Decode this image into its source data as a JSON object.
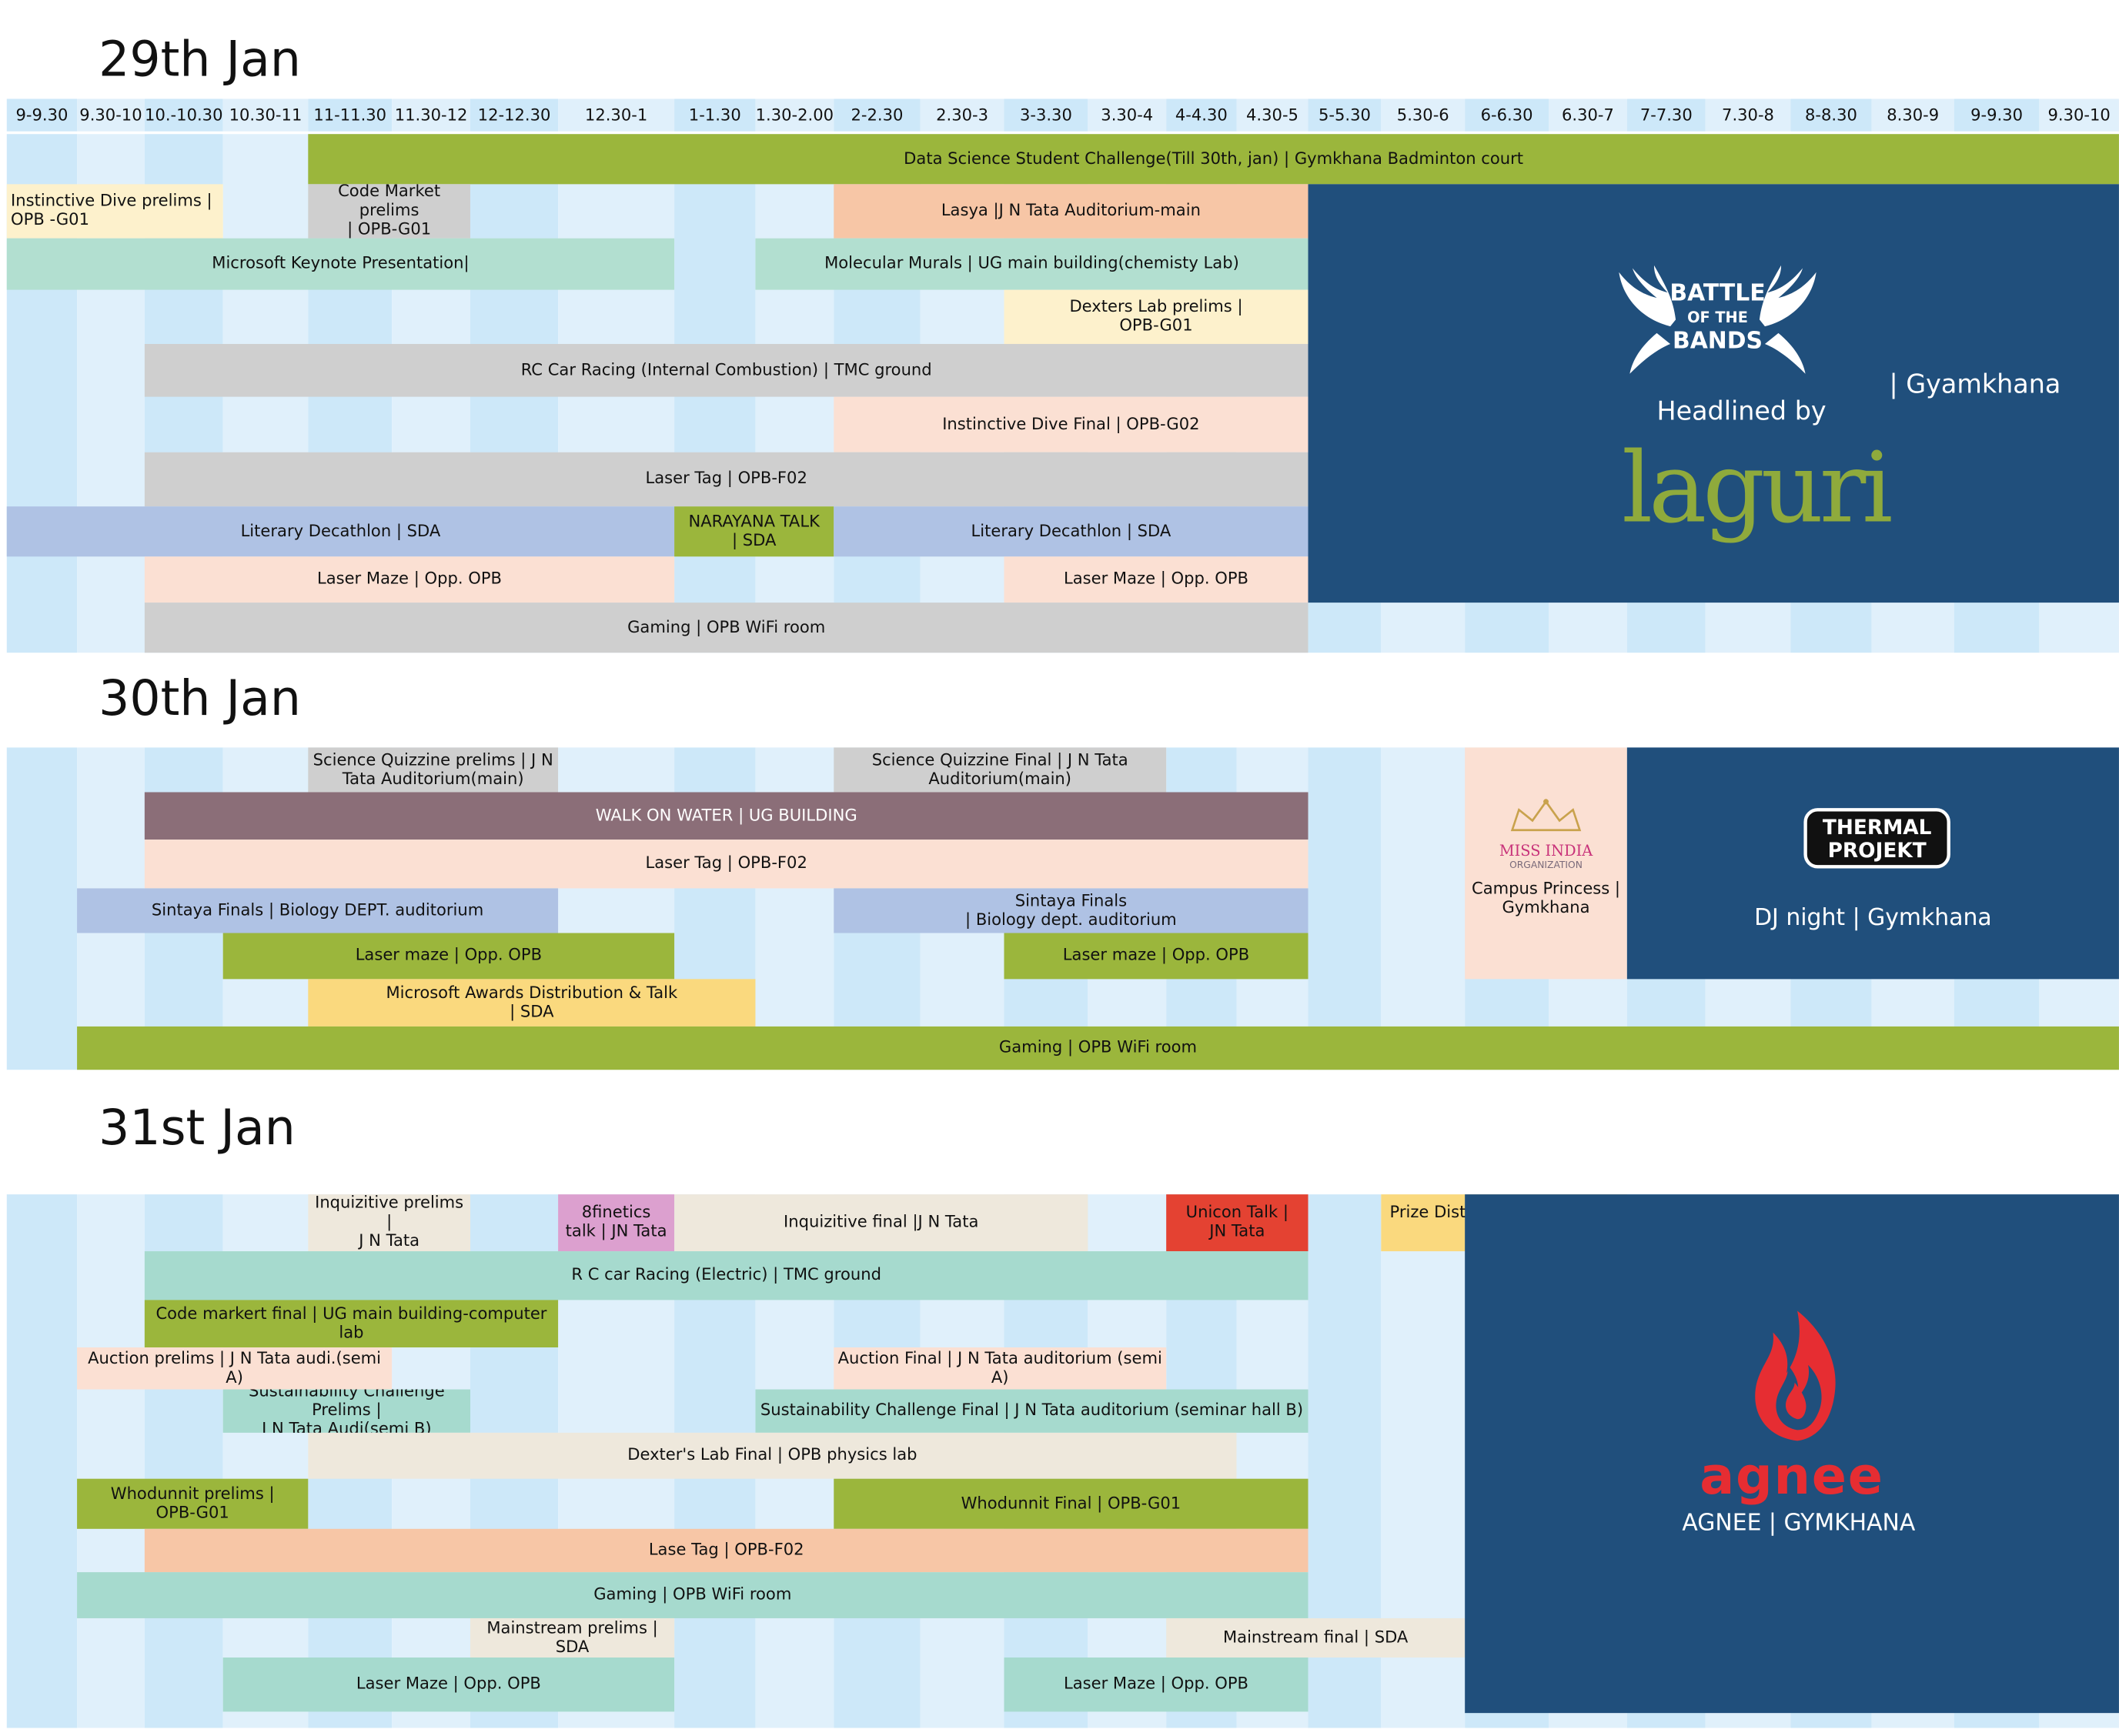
{
  "colors": {
    "grid_a": "#e0f0fb",
    "grid_b": "#cde8f9",
    "green": "#9bb63c",
    "yellow_light": "#fdf1cc",
    "gray": "#cfcfcf",
    "salmon": "#f7c6a6",
    "mint": "#b2dfd0",
    "peach": "#fbe0d3",
    "periwinkle": "#afc2e4",
    "mauve": "#8b6e78",
    "gold": "#fad97e",
    "beige": "#eee8dc",
    "pink": "#dca0cf",
    "red": "#e44232",
    "navy": "#204f7c",
    "teal": "#a6dace"
  },
  "time_slots": [
    "9-9.30",
    "9.30-10",
    "10.-10.30",
    "10.30-11",
    "11-11.30",
    "11.30-12",
    "12-12.30",
    "12.30-1",
    "1-1.30",
    "1.30-2.00",
    "2-2.30",
    "2.30-3",
    "3-3.30",
    "3.30-4",
    "4-4.30",
    "4.30-5",
    "5-5.30",
    "5.30-6",
    "6-6.30",
    "6.30-7",
    "7-7.30",
    "7.30-8",
    "8-8.30",
    "8.30-9",
    "9-9.30",
    "9.30-10"
  ],
  "days": [
    {
      "title": "29th Jan",
      "events": [
        {
          "label": "Data Science Student Challenge(Till 30th, jan) | Gymkhana Badminton court",
          "color": "green"
        },
        {
          "label": "Instinctive Dive prelims |\nOPB -G01",
          "color": "yellow_light"
        },
        {
          "label": "Code Market prelims\n| OPB-G01",
          "color": "gray"
        },
        {
          "label": "Lasya |J N Tata Auditorium-main",
          "color": "salmon"
        },
        {
          "label": "Microsoft Keynote Presentation|",
          "color": "mint"
        },
        {
          "label": "Molecular Murals | UG main building(chemisty Lab)",
          "color": "mint"
        },
        {
          "label": "Dexters Lab prelims |\nOPB-G01",
          "color": "yellow_light"
        },
        {
          "label": "RC Car Racing (Internal Combustion) | TMC ground",
          "color": "gray"
        },
        {
          "label": "Instinctive Dive Final | OPB-G02",
          "color": "peach"
        },
        {
          "label": "Laser Tag | OPB-F02",
          "color": "gray"
        },
        {
          "label": "Literary Decathlon | SDA",
          "color": "periwinkle"
        },
        {
          "label": "NARAYANA TALK\n| SDA",
          "color": "green"
        },
        {
          "label": "Literary Decathlon | SDA",
          "color": "periwinkle"
        },
        {
          "label": "Laser Maze | Opp. OPB",
          "color": "peach"
        },
        {
          "label": "Laser Maze | Opp. OPB",
          "color": "peach"
        },
        {
          "label": "Gaming | OPB WiFi room",
          "color": "gray"
        }
      ],
      "panel": {
        "logo_line1": "BATTLE",
        "logo_line2": "OF THE",
        "logo_line3": "BANDS",
        "headlined": "Headlined by",
        "band": "laguri",
        "venue": "| Gyamkhana"
      }
    },
    {
      "title": "30th Jan",
      "events": [
        {
          "label": "Science Quizzine prelims | J N\nTata Auditorium(main)",
          "color": "gray"
        },
        {
          "label": "Science Quizzine Final |     J N Tata\nAuditorium(main)",
          "color": "gray"
        },
        {
          "label": "WALK ON WATER | UG BUILDING",
          "color": "mauve"
        },
        {
          "label": "Laser Tag | OPB-F02",
          "color": "peach"
        },
        {
          "label": "Sintaya Finals | Biology DEPT. auditorium",
          "color": "periwinkle"
        },
        {
          "label": "Sintaya Finals\n| Biology dept. auditorium",
          "color": "periwinkle"
        },
        {
          "label": "Laser maze | Opp. OPB",
          "color": "green"
        },
        {
          "label": "Laser maze | Opp. OPB",
          "color": "green"
        },
        {
          "label": "Microsoft Awards Distribution & Talk\n| SDA",
          "color": "gold"
        },
        {
          "label": "Gaming |    OPB WiFi room",
          "color": "green"
        }
      ],
      "side": {
        "logo_line1": "MISS INDIA",
        "logo_line2": "ORGANIZATION",
        "label": "Campus Princess |\nGymkhana"
      },
      "panel": {
        "logo_line1": "THERMAL",
        "logo_line2": "PROJEKT",
        "caption": "DJ night | Gymkhana"
      }
    },
    {
      "title": "31st Jan",
      "events": [
        {
          "label": "Inquizitive prelims |\nJ N Tata",
          "color": "beige"
        },
        {
          "label": "8finetics\ntalk | JN Tata",
          "color": "pink"
        },
        {
          "label": "Inquizitive final |J N Tata",
          "color": "beige"
        },
        {
          "label": "Unicon Talk |\nJN Tata",
          "color": "red"
        },
        {
          "label": "Prize Distribution - Quizzes |\nJN Tata",
          "color": "gold"
        },
        {
          "label": "R C car Racing (Electric) | TMC ground",
          "color": "teal"
        },
        {
          "label": "Code markert final | UG main building-computer lab",
          "color": "green"
        },
        {
          "label": "Auction prelims | J N Tata audi.(semi A)",
          "color": "peach"
        },
        {
          "label": "Auction Final | J N Tata auditorium (semi A)",
          "color": "peach"
        },
        {
          "label": "Sustainability Challenge Prelims |\nJ N Tata Audi(semi B)",
          "color": "teal"
        },
        {
          "label": "Sustainability Challenge Final | J N Tata auditorium (seminar hall B)",
          "color": "teal"
        },
        {
          "label": "Dexter's Lab Final | OPB physics lab",
          "color": "beige"
        },
        {
          "label": "Whodunnit prelims |\nOPB-G01",
          "color": "green"
        },
        {
          "label": "Whodunnit Final | OPB-G01",
          "color": "green"
        },
        {
          "label": "Lase Tag | OPB-F02",
          "color": "salmon"
        },
        {
          "label": "Gaming | OPB WiFi room",
          "color": "teal"
        },
        {
          "label": "Mainstream prelims | SDA",
          "color": "beige"
        },
        {
          "label": "Mainstream final | SDA",
          "color": "beige"
        },
        {
          "label": "Laser Maze | Opp. OPB",
          "color": "teal"
        },
        {
          "label": "Laser Maze | Opp. OPB",
          "color": "teal"
        }
      ],
      "panel": {
        "logo_text": "agnee",
        "caption": "AGNEE | GYMKHANA"
      }
    }
  ]
}
